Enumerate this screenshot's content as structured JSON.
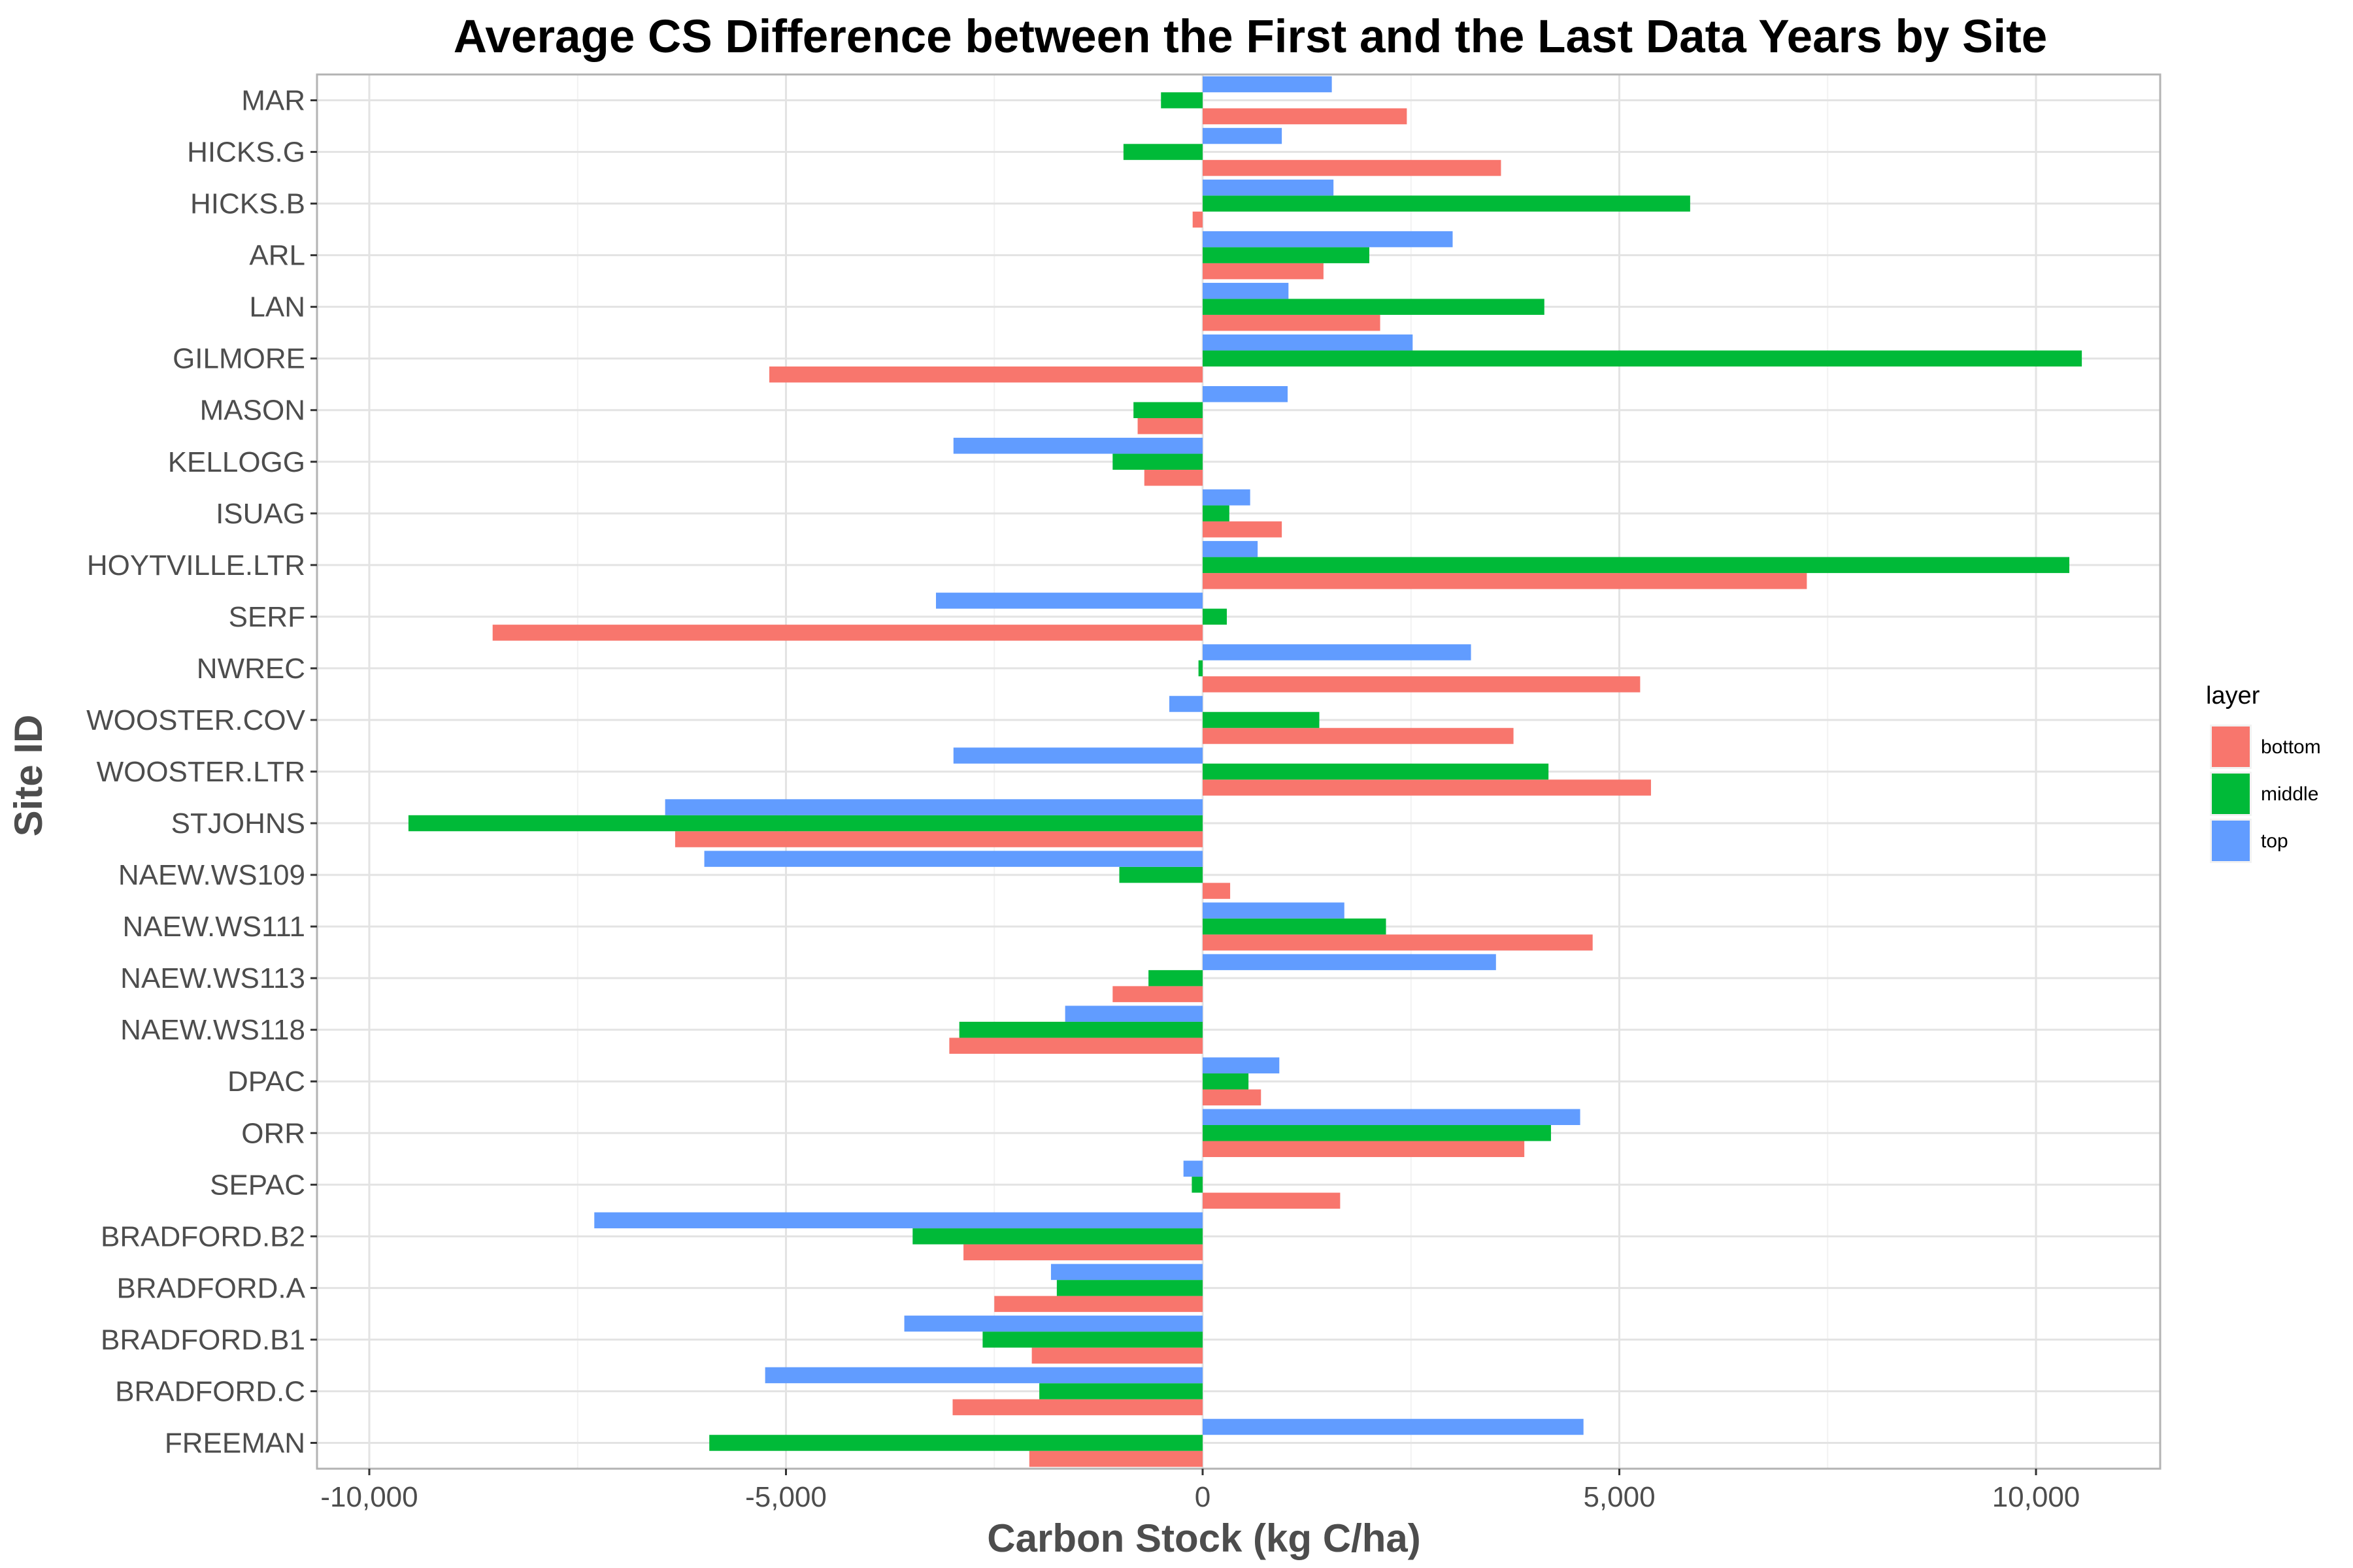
{
  "chart_data": {
    "type": "bar",
    "orientation": "horizontal",
    "title": "Average CS Difference between the First and the Last Data Years by Site",
    "xlabel": "Carbon Stock (kg C/ha)",
    "ylabel": "Site ID",
    "xlim": [
      -10500,
      11500
    ],
    "x_ticks": [
      -10000,
      -5000,
      0,
      5000,
      10000
    ],
    "x_tick_labels": [
      "-10,000",
      "-5,000",
      "0",
      "5,000",
      "10,000"
    ],
    "grid": true,
    "legend_position": "right",
    "legend_title": "layer",
    "categories": [
      "MAR",
      "HICKS.G",
      "HICKS.B",
      "ARL",
      "LAN",
      "GILMORE",
      "MASON",
      "KELLOGG",
      "ISUAG",
      "HOYTVILLE.LTR",
      "SERF",
      "NWREC",
      "WOOSTER.COV",
      "WOOSTER.LTR",
      "STJOHNS",
      "NAEW.WS109",
      "NAEW.WS111",
      "NAEW.WS113",
      "NAEW.WS118",
      "DPAC",
      "ORR",
      "SEPAC",
      "BRADFORD.B2",
      "BRADFORD.A",
      "BRADFORD.B1",
      "BRADFORD.C",
      "FREEMAN"
    ],
    "series": [
      {
        "name": "bottom",
        "color": "#F8766D",
        "values": [
          2450,
          3580,
          -120,
          1450,
          2130,
          -5200,
          -780,
          -700,
          950,
          7250,
          -8520,
          5250,
          3730,
          5380,
          -6330,
          330,
          4680,
          -1080,
          -3040,
          700,
          3860,
          1650,
          -2870,
          -2500,
          -2050,
          -3000,
          -2080
        ]
      },
      {
        "name": "middle",
        "color": "#00BA38",
        "values": [
          -500,
          -950,
          5850,
          2000,
          4100,
          10550,
          -830,
          -1080,
          320,
          10400,
          290,
          -50,
          1400,
          4150,
          -9530,
          -1000,
          2200,
          -650,
          -2920,
          550,
          4180,
          -130,
          -3480,
          -1750,
          -2640,
          -1960,
          -5920
        ]
      },
      {
        "name": "top",
        "color": "#619CFF",
        "values": [
          1550,
          950,
          1570,
          3000,
          1030,
          2520,
          1020,
          -2990,
          570,
          660,
          -3200,
          3220,
          -400,
          -2990,
          -6450,
          -5980,
          1700,
          3520,
          -1650,
          920,
          4530,
          -230,
          -7300,
          -1820,
          -3580,
          -5250,
          4570
        ]
      }
    ]
  }
}
